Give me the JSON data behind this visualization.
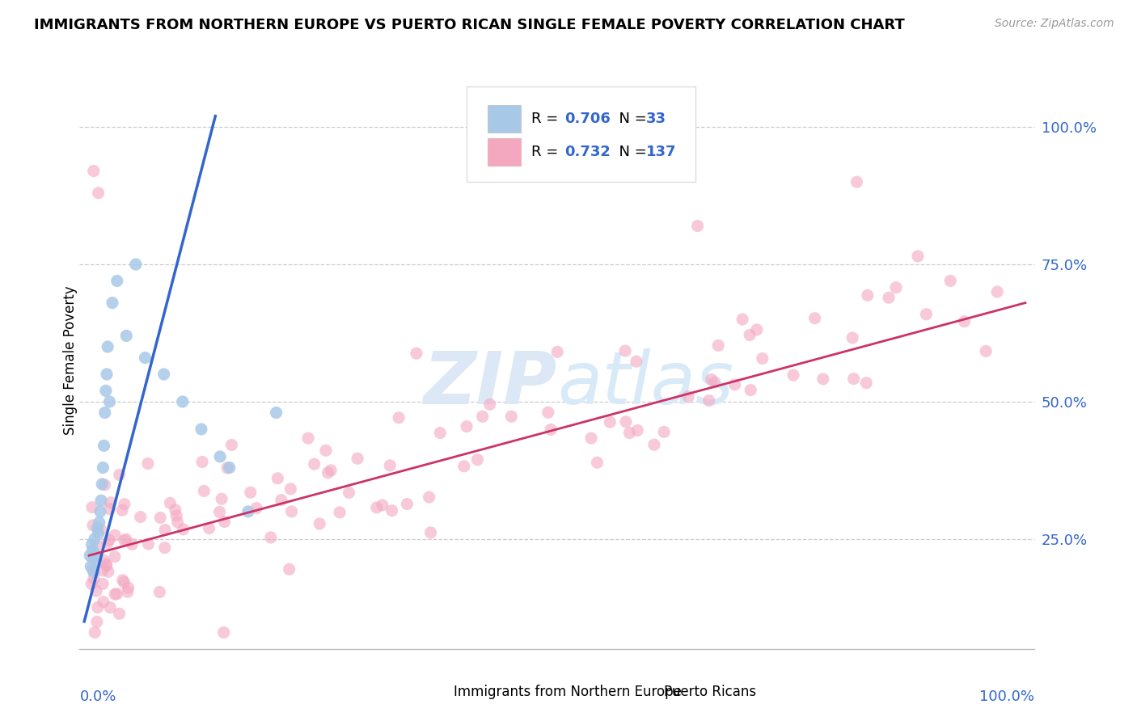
{
  "title": "IMMIGRANTS FROM NORTHERN EUROPE VS PUERTO RICAN SINGLE FEMALE POVERTY CORRELATION CHART",
  "source": "Source: ZipAtlas.com",
  "ylabel": "Single Female Poverty",
  "legend_bottom_blue": "Immigrants from Northern Europe",
  "legend_bottom_pink": "Puerto Ricans",
  "blue_color": "#a8c8e8",
  "pink_color": "#f4a8c0",
  "blue_line_color": "#3366cc",
  "pink_line_color": "#cc3366",
  "blue_R": 0.706,
  "blue_N": 33,
  "pink_R": 0.732,
  "pink_N": 137,
  "blue_scatter_x": [
    0.001,
    0.002,
    0.003,
    0.004,
    0.005,
    0.006,
    0.007,
    0.008,
    0.009,
    0.01,
    0.011,
    0.012,
    0.013,
    0.014,
    0.015,
    0.016,
    0.017,
    0.018,
    0.019,
    0.02,
    0.022,
    0.025,
    0.03,
    0.04,
    0.05,
    0.06,
    0.08,
    0.1,
    0.12,
    0.14,
    0.15,
    0.17,
    0.2
  ],
  "blue_scatter_y": [
    0.22,
    0.2,
    0.24,
    0.23,
    0.19,
    0.25,
    0.22,
    0.21,
    0.27,
    0.26,
    0.28,
    0.3,
    0.32,
    0.35,
    0.38,
    0.42,
    0.48,
    0.52,
    0.55,
    0.6,
    0.5,
    0.68,
    0.72,
    0.62,
    0.75,
    0.58,
    0.55,
    0.5,
    0.45,
    0.4,
    0.38,
    0.3,
    0.48
  ],
  "blue_line_x": [
    -0.005,
    0.135
  ],
  "blue_line_y": [
    0.1,
    1.02
  ],
  "pink_line_x": [
    0.0,
    1.0
  ],
  "pink_line_y": [
    0.22,
    0.68
  ],
  "xlim": [
    -0.01,
    1.01
  ],
  "ylim": [
    0.05,
    1.1
  ],
  "ytick_vals": [
    0.25,
    0.5,
    0.75,
    1.0
  ],
  "ytick_labels": [
    "25.0%",
    "50.0%",
    "75.0%",
    "100.0%"
  ],
  "grid_color": "#cccccc",
  "watermark_color": "#dce8f5"
}
